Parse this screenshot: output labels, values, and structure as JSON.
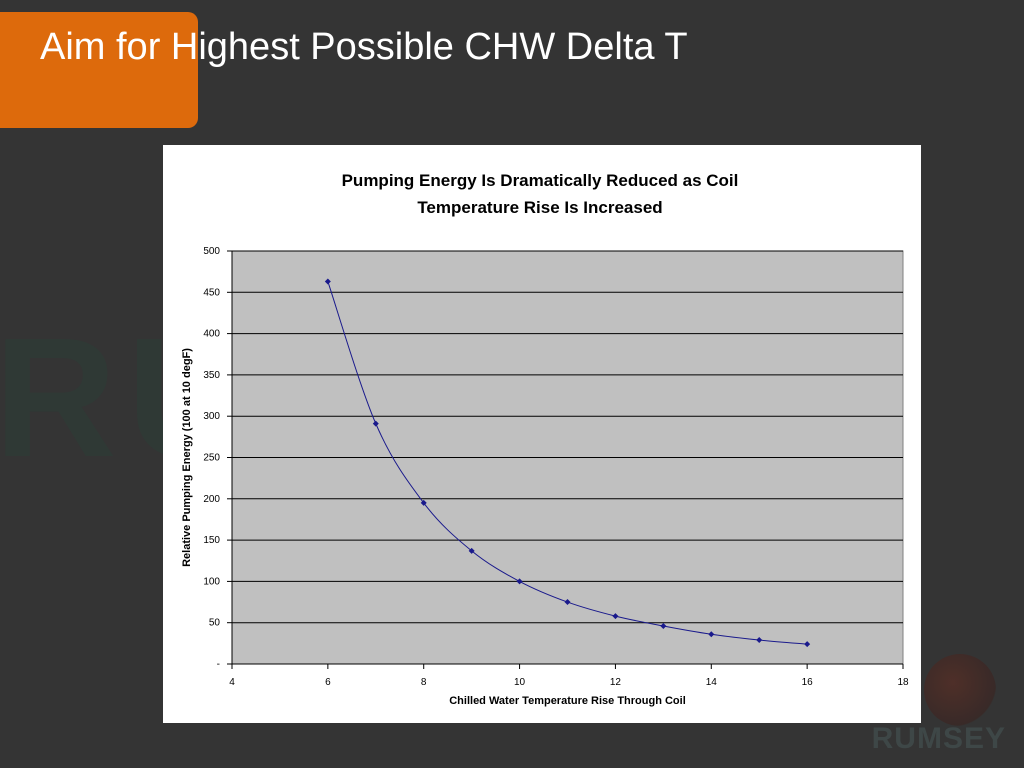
{
  "slide": {
    "title": "Aim for Highest Possible CHW Delta T",
    "accent_color": "#dd6a0c",
    "background_color": "#343434",
    "logo_text": "RUMSEY",
    "watermark_text": "RUMSEY"
  },
  "chart_data": {
    "type": "scatter",
    "title": "Pumping Energy Is Dramatically Reduced as Coil Temperature Rise Is Increased",
    "title_lines": [
      "Pumping Energy Is Dramatically Reduced as Coil",
      "Temperature Rise Is Increased"
    ],
    "xlabel": "Chilled Water Temperature Rise Through Coil",
    "ylabel": "Relative Pumping Energy (100 at 10 degF)",
    "xlim": [
      4,
      18
    ],
    "ylim": [
      0,
      500
    ],
    "xticks": [
      "4",
      "6",
      "8",
      "10",
      "12",
      "14",
      "16",
      "18"
    ],
    "yticks": [
      "-",
      "50",
      "100",
      "150",
      "200",
      "250",
      "300",
      "350",
      "400",
      "450",
      "500"
    ],
    "series": [
      {
        "x": [
          6,
          7,
          8,
          9,
          10,
          11,
          12,
          13,
          14,
          15,
          16
        ],
        "y": [
          463,
          291,
          195,
          137,
          100,
          75,
          58,
          46,
          36,
          29,
          24
        ],
        "color": "#1a1a8c",
        "line": "smooth",
        "marker": "diamond"
      }
    ],
    "grid": true,
    "plot_background": "#c0c0c0",
    "legend": "none"
  }
}
